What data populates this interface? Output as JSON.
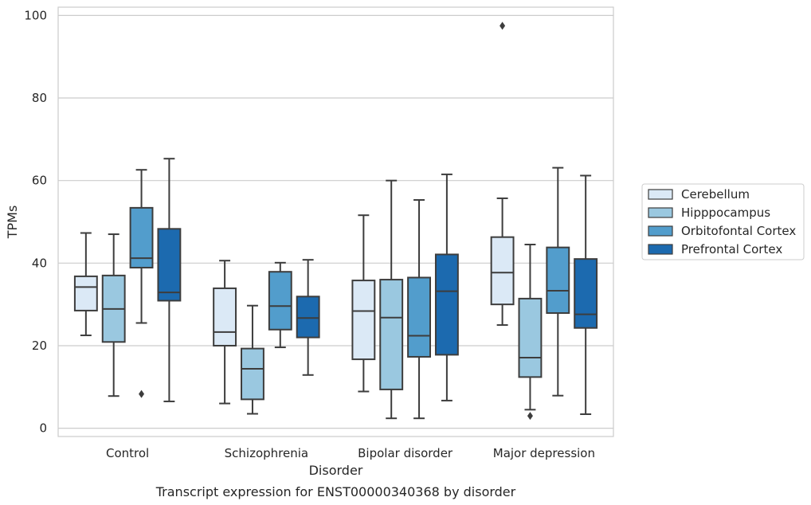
{
  "chart_data": {
    "type": "box",
    "title": "",
    "caption": "Transcript expression for ENST00000340368 by disorder",
    "xlabel": "Disorder",
    "ylabel": "TPMs",
    "ylim": [
      -2,
      102
    ],
    "yticks": [
      0,
      20,
      40,
      60,
      80,
      100
    ],
    "grid": "horizontal",
    "legend_placement": "right",
    "categories": [
      "Control",
      "Schizophrenia",
      "Bipolar disorder",
      "Major depression"
    ],
    "series": [
      {
        "name": "Cerebellum",
        "color": "#dbe9f6",
        "boxes": [
          {
            "whisker_low": 22.5,
            "q1": 28.5,
            "median": 34.2,
            "q3": 36.8,
            "whisker_high": 47.3,
            "outliers": []
          },
          {
            "whisker_low": 6.0,
            "q1": 20.0,
            "median": 23.3,
            "q3": 33.9,
            "whisker_high": 40.6,
            "outliers": []
          },
          {
            "whisker_low": 8.9,
            "q1": 16.7,
            "median": 28.4,
            "q3": 35.8,
            "whisker_high": 51.6,
            "outliers": []
          },
          {
            "whisker_low": 25.0,
            "q1": 30.0,
            "median": 37.7,
            "q3": 46.3,
            "whisker_high": 55.7,
            "outliers": [
              97.5
            ]
          }
        ]
      },
      {
        "name": "Hipppocampus",
        "color": "#9ac8e0",
        "boxes": [
          {
            "whisker_low": 7.8,
            "q1": 20.9,
            "median": 28.9,
            "q3": 37.0,
            "whisker_high": 47.0,
            "outliers": []
          },
          {
            "whisker_low": 3.5,
            "q1": 7.0,
            "median": 14.4,
            "q3": 19.3,
            "whisker_high": 29.7,
            "outliers": []
          },
          {
            "whisker_low": 2.4,
            "q1": 9.4,
            "median": 26.8,
            "q3": 36.0,
            "whisker_high": 60.0,
            "outliers": []
          },
          {
            "whisker_low": 4.5,
            "q1": 12.4,
            "median": 17.1,
            "q3": 31.4,
            "whisker_high": 44.5,
            "outliers": [
              3.0
            ]
          }
        ]
      },
      {
        "name": "Orbitofontal Cortex",
        "color": "#529dcc",
        "boxes": [
          {
            "whisker_low": 25.5,
            "q1": 38.9,
            "median": 41.2,
            "q3": 53.4,
            "whisker_high": 62.6,
            "outliers": [
              8.3
            ]
          },
          {
            "whisker_low": 19.6,
            "q1": 23.9,
            "median": 29.6,
            "q3": 37.9,
            "whisker_high": 40.1,
            "outliers": []
          },
          {
            "whisker_low": 2.4,
            "q1": 17.3,
            "median": 22.4,
            "q3": 36.5,
            "whisker_high": 55.3,
            "outliers": []
          },
          {
            "whisker_low": 7.9,
            "q1": 27.9,
            "median": 33.3,
            "q3": 43.8,
            "whisker_high": 63.1,
            "outliers": []
          }
        ]
      },
      {
        "name": "Prefrontal Cortex",
        "color": "#1c6aaf",
        "boxes": [
          {
            "whisker_low": 6.5,
            "q1": 30.9,
            "median": 32.9,
            "q3": 48.3,
            "whisker_high": 65.3,
            "outliers": []
          },
          {
            "whisker_low": 12.9,
            "q1": 22.0,
            "median": 26.7,
            "q3": 31.9,
            "whisker_high": 40.8,
            "outliers": []
          },
          {
            "whisker_low": 6.7,
            "q1": 17.8,
            "median": 33.2,
            "q3": 42.1,
            "whisker_high": 61.5,
            "outliers": []
          },
          {
            "whisker_low": 3.4,
            "q1": 24.3,
            "median": 27.6,
            "q3": 41.0,
            "whisker_high": 61.2,
            "outliers": []
          }
        ]
      }
    ]
  }
}
